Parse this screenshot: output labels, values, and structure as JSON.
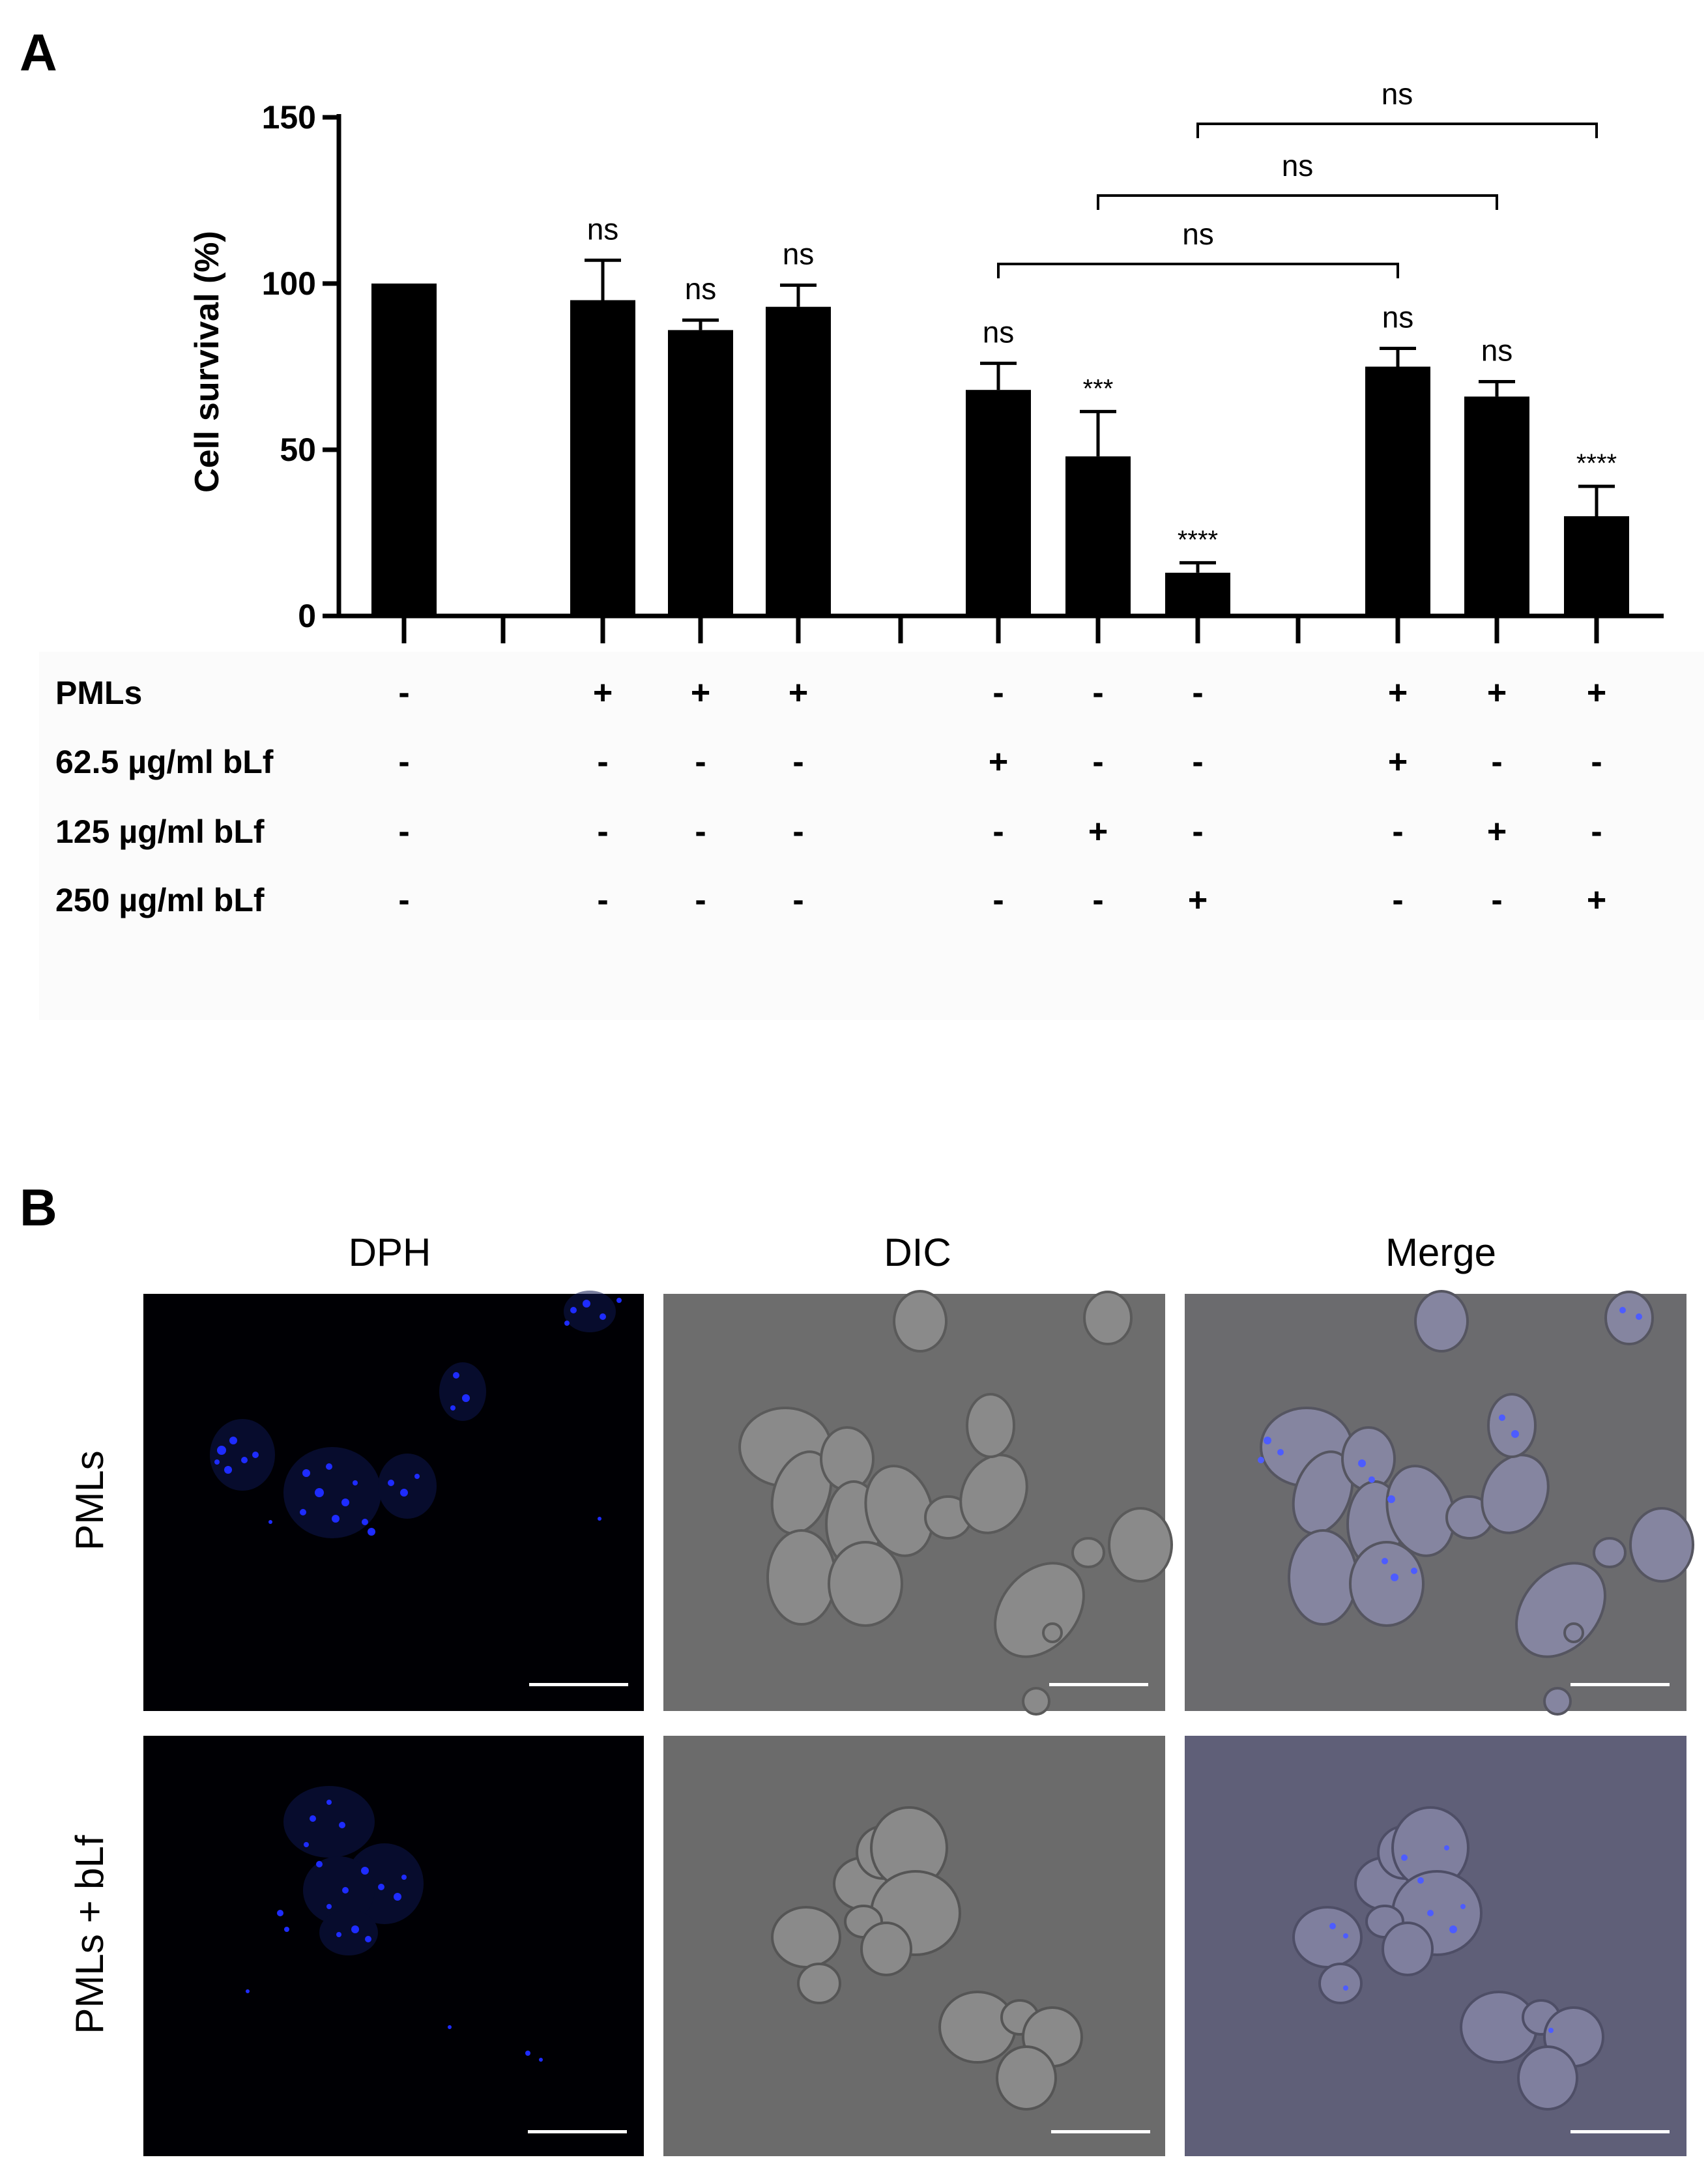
{
  "panels": {
    "a": "A",
    "b": "B"
  },
  "chart_data": {
    "type": "bar",
    "title": "",
    "xlabel": "",
    "ylabel": "Cell survival (%)",
    "ylim": [
      0,
      150
    ],
    "yticks": [
      0,
      50,
      100,
      150
    ],
    "grid": false,
    "legend": "none",
    "bars": [
      {
        "group": 0,
        "value": 100,
        "error": 0,
        "sig": ""
      },
      {
        "group": 1,
        "value": 95,
        "error": 12,
        "sig": "ns"
      },
      {
        "group": 1,
        "value": 86,
        "error": 3,
        "sig": "ns"
      },
      {
        "group": 1,
        "value": 93,
        "error": 6.5,
        "sig": "ns"
      },
      {
        "group": 2,
        "value": 68,
        "error": 8,
        "sig": "ns"
      },
      {
        "group": 2,
        "value": 48,
        "error": 13.5,
        "sig": "***"
      },
      {
        "group": 2,
        "value": 13,
        "error": 3,
        "sig": "****"
      },
      {
        "group": 3,
        "value": 75,
        "error": 5.5,
        "sig": "ns"
      },
      {
        "group": 3,
        "value": 66,
        "error": 4.5,
        "sig": "ns"
      },
      {
        "group": 3,
        "value": 30,
        "error": 9,
        "sig": "****"
      }
    ],
    "comparisons": [
      {
        "from": 4,
        "to": 7,
        "label": "ns"
      },
      {
        "from": 5,
        "to": 8,
        "label": "ns"
      },
      {
        "from": 6,
        "to": 9,
        "label": "ns"
      }
    ],
    "conditions": [
      {
        "label": "PMLs",
        "marks": [
          "-",
          "+",
          "+",
          "+",
          "-",
          "-",
          "-",
          "+",
          "+",
          "+"
        ]
      },
      {
        "label": "62.5 µg/ml bLf",
        "marks": [
          "-",
          "-",
          "-",
          "-",
          "+",
          "-",
          "-",
          "+",
          "-",
          "-"
        ]
      },
      {
        "label": "125 µg/ml bLf",
        "marks": [
          "-",
          "-",
          "-",
          "-",
          "-",
          "+",
          "-",
          "-",
          "+",
          "-"
        ]
      },
      {
        "label": "250 µg/ml bLf",
        "marks": [
          "-",
          "-",
          "-",
          "-",
          "-",
          "-",
          "+",
          "-",
          "-",
          "+"
        ]
      }
    ]
  },
  "micrographs": {
    "columns": [
      "DPH",
      "DIC",
      "Merge"
    ],
    "rows": [
      "PMLs",
      "PMLs + bLf"
    ],
    "colors": {
      "dph_background": "#000004",
      "dph_signal": "#1e2cff",
      "dic_background": "#6d6d6d",
      "dic_cell": "#8a8a8a",
      "merge_background_row1": "#6b6b6e",
      "merge_background_row2": "#5f5f78",
      "scale_bar": "#ffffff"
    }
  }
}
